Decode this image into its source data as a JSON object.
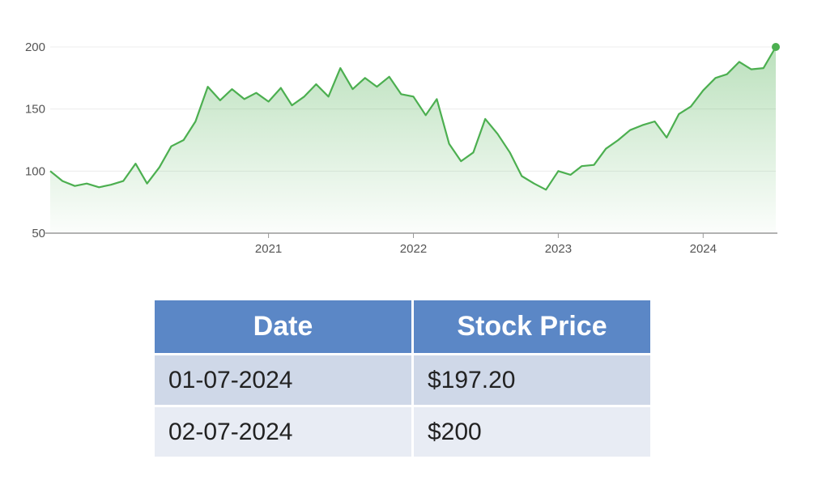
{
  "chart_data": {
    "type": "area",
    "x_type": "date",
    "ylim": [
      50,
      200
    ],
    "yticks": [
      50,
      100,
      150,
      200
    ],
    "xticks": [
      "2021",
      "2022",
      "2023",
      "2024"
    ],
    "grid": "horizontal",
    "legend": "none",
    "colors": {
      "line": "#4caf50",
      "fill": "#4caf50",
      "axis": "#999999",
      "grid": "#ececec"
    },
    "series": [
      {
        "x": [
          "2019-07-01",
          "2019-08-01",
          "2019-09-01",
          "2019-10-01",
          "2019-11-01",
          "2019-12-01",
          "2020-01-01",
          "2020-02-01",
          "2020-03-01",
          "2020-04-01",
          "2020-05-01",
          "2020-06-01",
          "2020-07-01",
          "2020-08-01",
          "2020-09-01",
          "2020-10-01",
          "2020-11-01",
          "2020-12-01",
          "2021-01-01",
          "2021-02-01",
          "2021-03-01",
          "2021-04-01",
          "2021-05-01",
          "2021-06-01",
          "2021-07-01",
          "2021-08-01",
          "2021-09-01",
          "2021-10-01",
          "2021-11-01",
          "2021-12-01",
          "2022-01-01",
          "2022-02-01",
          "2022-03-01",
          "2022-04-01",
          "2022-05-01",
          "2022-06-01",
          "2022-07-01",
          "2022-08-01",
          "2022-09-01",
          "2022-10-01",
          "2022-11-01",
          "2022-12-01",
          "2023-01-01",
          "2023-02-01",
          "2023-03-01",
          "2023-04-01",
          "2023-05-01",
          "2023-06-01",
          "2023-07-01",
          "2023-08-01",
          "2023-09-01",
          "2023-10-01",
          "2023-11-01",
          "2023-12-01",
          "2024-01-01",
          "2024-02-01",
          "2024-03-01",
          "2024-04-01",
          "2024-05-01",
          "2024-06-01",
          "2024-07-02"
        ],
        "values": [
          100,
          92,
          88,
          90,
          87,
          89,
          92,
          106,
          90,
          103,
          120,
          125,
          140,
          168,
          157,
          166,
          158,
          163,
          156,
          167,
          153,
          160,
          170,
          160,
          183,
          166,
          175,
          168,
          176,
          162,
          160,
          145,
          158,
          122,
          108,
          115,
          142,
          130,
          115,
          96,
          90,
          85,
          100,
          97,
          104,
          105,
          118,
          125,
          133,
          137,
          140,
          127,
          146,
          152,
          165,
          175,
          178,
          188,
          182,
          183,
          200
        ]
      }
    ]
  },
  "table": {
    "headers": [
      "Date",
      "Stock Price"
    ],
    "rows": [
      [
        "01-07-2024",
        "$197.20"
      ],
      [
        "02-07-2024",
        "$200"
      ]
    ],
    "colors": {
      "header_bg": "#5b87c6",
      "row1_bg": "#cfd8e8",
      "row2_bg": "#e8ecf4"
    }
  }
}
